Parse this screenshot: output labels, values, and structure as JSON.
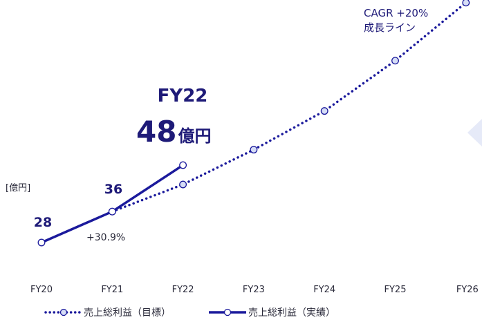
{
  "chart_data": {
    "type": "line",
    "categories": [
      "FY20",
      "FY21",
      "FY22",
      "FY23",
      "FY24",
      "FY25",
      "FY26"
    ],
    "unit_label": "[億円]",
    "series": [
      {
        "name": "売上総利益（目標）",
        "style": "dotted",
        "color": "#1b1a9c",
        "x": [
          "FY21",
          "FY22",
          "FY23",
          "FY24",
          "FY25",
          "FY26"
        ],
        "values": [
          36,
          43,
          52,
          62,
          75,
          90
        ]
      },
      {
        "name": "売上総利益（実績）",
        "style": "solid",
        "color": "#1b1a9c",
        "x": [
          "FY20",
          "FY21",
          "FY22"
        ],
        "values": [
          28,
          36,
          48
        ]
      }
    ],
    "data_labels": [
      {
        "x": "FY20",
        "text": "28"
      },
      {
        "x": "FY21",
        "text": "36"
      }
    ],
    "growth_label": "+30.9%",
    "highlight": {
      "year": "FY22",
      "value": "48",
      "unit": "億円"
    },
    "annotation": {
      "line1": "CAGR +20%",
      "line2": "成長ライン"
    },
    "legend": {
      "position": "bottom-left"
    }
  }
}
